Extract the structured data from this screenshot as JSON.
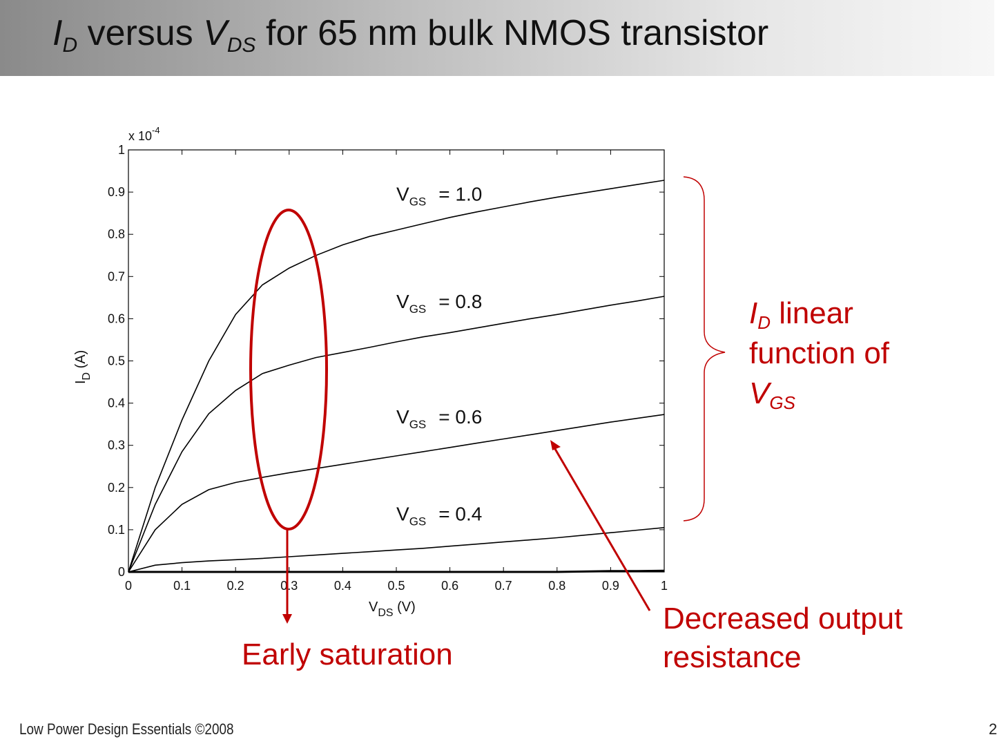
{
  "slide": {
    "title_parts": {
      "i": "I",
      "i_sub": "D",
      "mid": " versus ",
      "v": "V",
      "v_sub": "DS",
      "rest": " for 65 nm bulk NMOS transistor"
    },
    "footer": "Low Power Design Essentials ©2008",
    "page_number": "2"
  },
  "annotations": {
    "brace_note": {
      "id_main": "I",
      "id_sub": "D",
      "line1_rest": " linear",
      "line2": "function of",
      "vgs_main": "V",
      "vgs_sub": "GS"
    },
    "early_saturation": "Early saturation",
    "decreased_output_resistance": "Decreased output resistance",
    "color": "#c00000"
  },
  "chart_data": {
    "type": "line",
    "x_label_main": "V",
    "x_label_sub": "DS",
    "x_label_unit": " (V)",
    "y_label_main": "I",
    "y_label_sub": "D",
    "y_label_unit": " (A)",
    "y_multiplier_base": "x 10",
    "y_multiplier_exp": "-4",
    "xlim": [
      0,
      1
    ],
    "ylim": [
      0,
      1
    ],
    "x_ticks": [
      "0",
      "0.1",
      "0.2",
      "0.3",
      "0.4",
      "0.5",
      "0.6",
      "0.7",
      "0.8",
      "0.9",
      "1"
    ],
    "y_ticks": [
      "0",
      "0.1",
      "0.2",
      "0.3",
      "0.4",
      "0.5",
      "0.6",
      "0.7",
      "0.8",
      "0.9",
      "1"
    ],
    "x": [
      0,
      0.05,
      0.1,
      0.15,
      0.2,
      0.25,
      0.3,
      0.35,
      0.4,
      0.45,
      0.5,
      0.55,
      0.6,
      0.65,
      0.7,
      0.75,
      0.8,
      0.85,
      0.9,
      0.95,
      1.0
    ],
    "series": [
      {
        "label_main": "V",
        "label_sub": "GS",
        "label_value": "= 1.0",
        "label_pos": [
          0.5,
          0.88
        ],
        "values": [
          0,
          0.2,
          0.36,
          0.5,
          0.61,
          0.68,
          0.72,
          0.75,
          0.775,
          0.795,
          0.81,
          0.825,
          0.84,
          0.853,
          0.865,
          0.877,
          0.888,
          0.898,
          0.908,
          0.918,
          0.928
        ]
      },
      {
        "label_main": "V",
        "label_sub": "GS",
        "label_value": "= 0.8",
        "label_pos": [
          0.5,
          0.625
        ],
        "values": [
          0,
          0.16,
          0.285,
          0.375,
          0.43,
          0.47,
          0.49,
          0.508,
          0.52,
          0.532,
          0.545,
          0.557,
          0.567,
          0.578,
          0.589,
          0.6,
          0.61,
          0.621,
          0.632,
          0.642,
          0.653
        ]
      },
      {
        "label_main": "V",
        "label_sub": "GS",
        "label_value": "= 0.6",
        "label_pos": [
          0.5,
          0.352
        ],
        "values": [
          0,
          0.1,
          0.16,
          0.195,
          0.212,
          0.224,
          0.235,
          0.245,
          0.255,
          0.265,
          0.275,
          0.285,
          0.295,
          0.305,
          0.315,
          0.325,
          0.335,
          0.345,
          0.355,
          0.364,
          0.373
        ]
      },
      {
        "label_main": "V",
        "label_sub": "GS",
        "label_value": "= 0.4",
        "label_pos": [
          0.5,
          0.122
        ],
        "values": [
          0,
          0.016,
          0.022,
          0.026,
          0.029,
          0.032,
          0.036,
          0.04,
          0.044,
          0.048,
          0.052,
          0.056,
          0.061,
          0.066,
          0.071,
          0.076,
          0.081,
          0.087,
          0.093,
          0.099,
          0.105
        ]
      },
      {
        "label_main": "",
        "label_sub": "",
        "label_value": "",
        "label_pos": null,
        "values": [
          0,
          0,
          0,
          0,
          0,
          0,
          0,
          0,
          0,
          0,
          0,
          0,
          0,
          0,
          0,
          0,
          0,
          0.001,
          0.002,
          0.002,
          0.003
        ]
      }
    ],
    "grid": false,
    "line_color": "#000000"
  }
}
